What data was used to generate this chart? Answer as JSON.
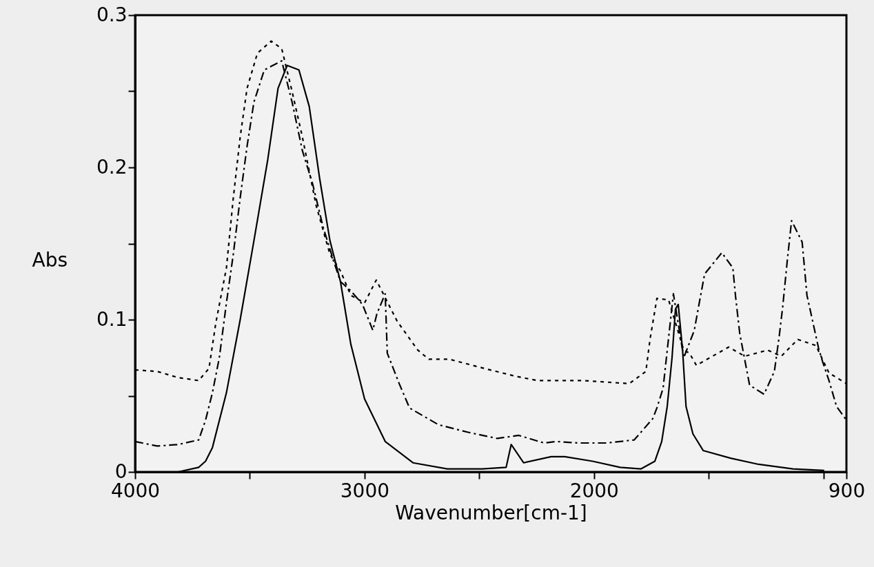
{
  "chart_data": {
    "type": "line",
    "xlabel": "Wavenumber[cm-1]",
    "ylabel": "Abs",
    "xlim": [
      4000,
      900
    ],
    "ylim": [
      0,
      0.3
    ],
    "xticks": [
      4000,
      {
        "value": 3500,
        "label": null
      },
      3000,
      {
        "value": 2500,
        "label": null
      },
      2000,
      {
        "value": 1500,
        "label": null
      },
      {
        "value": 1000,
        "label": null
      },
      900
    ],
    "yticks": [
      0,
      {
        "value": 0.05,
        "label": null
      },
      0.1,
      {
        "value": 0.15,
        "label": null
      },
      0.2,
      {
        "value": 0.25,
        "label": null
      },
      0.3
    ],
    "grid": false,
    "marker": "none",
    "series": [
      {
        "color": "#000000",
        "line_style": "solid",
        "x": [
          4000,
          3813,
          3723,
          3693,
          3663,
          3602,
          3542,
          3482,
          3422,
          3377,
          3337,
          3286,
          3241,
          3196,
          3151,
          3105,
          3060,
          3000,
          2910,
          2789,
          2639,
          2488,
          2383,
          2361,
          2307,
          2187,
          2127,
          2006,
          1886,
          1795,
          1735,
          1705,
          1681,
          1660,
          1645,
          1633,
          1614,
          1599,
          1569,
          1524,
          1404,
          1283,
          1133,
          997
        ],
        "values": [
          0.0,
          0.0,
          0.003,
          0.007,
          0.016,
          0.052,
          0.1,
          0.152,
          0.205,
          0.252,
          0.267,
          0.264,
          0.24,
          0.193,
          0.152,
          0.125,
          0.084,
          0.048,
          0.02,
          0.006,
          0.002,
          0.002,
          0.003,
          0.018,
          0.006,
          0.01,
          0.01,
          0.007,
          0.003,
          0.002,
          0.007,
          0.02,
          0.043,
          0.075,
          0.107,
          0.11,
          0.08,
          0.043,
          0.025,
          0.014,
          0.009,
          0.005,
          0.002,
          0.001
        ]
      },
      {
        "color": "#000000",
        "line_style": "dotted",
        "x": [
          4000,
          3904,
          3813,
          3723,
          3678,
          3648,
          3602,
          3572,
          3542,
          3512,
          3467,
          3407,
          3361,
          3316,
          3271,
          3211,
          3151,
          3105,
          3060,
          3000,
          2949,
          2858,
          2768,
          2720,
          2630,
          2479,
          2346,
          2247,
          2045,
          1846,
          1774,
          1756,
          1726,
          1675,
          1609,
          1584,
          1554,
          1413,
          1343,
          1292,
          1244,
          1184,
          1112,
          1033,
          976,
          900
        ],
        "values": [
          0.067,
          0.066,
          0.062,
          0.06,
          0.068,
          0.098,
          0.134,
          0.18,
          0.22,
          0.252,
          0.275,
          0.283,
          0.278,
          0.25,
          0.22,
          0.175,
          0.143,
          0.132,
          0.116,
          0.111,
          0.126,
          0.099,
          0.08,
          0.074,
          0.074,
          0.068,
          0.063,
          0.06,
          0.06,
          0.058,
          0.066,
          0.087,
          0.114,
          0.113,
          0.08,
          0.078,
          0.07,
          0.082,
          0.076,
          0.078,
          0.08,
          0.076,
          0.087,
          0.083,
          0.065,
          0.058
        ]
      },
      {
        "color": "#000000",
        "line_style": "dashed",
        "x": [
          4000,
          3904,
          3813,
          3723,
          3693,
          3663,
          3633,
          3602,
          3572,
          3542,
          3512,
          3482,
          3437,
          3361,
          3316,
          3271,
          3226,
          3181,
          3136,
          3105,
          3060,
          3009,
          2964,
          2946,
          2910,
          2901,
          2849,
          2804,
          2678,
          2548,
          2422,
          2328,
          2217,
          2166,
          2066,
          1946,
          1825,
          1744,
          1726,
          1699,
          1654,
          1609,
          1563,
          1545,
          1518,
          1443,
          1395,
          1383,
          1365,
          1322,
          1259,
          1214,
          1193,
          1178,
          1157,
          1139,
          1093,
          1072,
          1021,
          1003,
          976,
          943,
          900
        ],
        "values": [
          0.02,
          0.017,
          0.018,
          0.021,
          0.034,
          0.052,
          0.075,
          0.111,
          0.143,
          0.18,
          0.214,
          0.243,
          0.264,
          0.27,
          0.243,
          0.211,
          0.189,
          0.161,
          0.139,
          0.125,
          0.119,
          0.11,
          0.093,
          0.104,
          0.117,
          0.078,
          0.058,
          0.042,
          0.031,
          0.026,
          0.022,
          0.024,
          0.019,
          0.02,
          0.019,
          0.019,
          0.021,
          0.035,
          0.042,
          0.055,
          0.117,
          0.075,
          0.093,
          0.108,
          0.13,
          0.144,
          0.134,
          0.115,
          0.091,
          0.057,
          0.051,
          0.066,
          0.089,
          0.108,
          0.14,
          0.165,
          0.151,
          0.116,
          0.081,
          0.072,
          0.06,
          0.043,
          0.034
        ]
      }
    ]
  }
}
